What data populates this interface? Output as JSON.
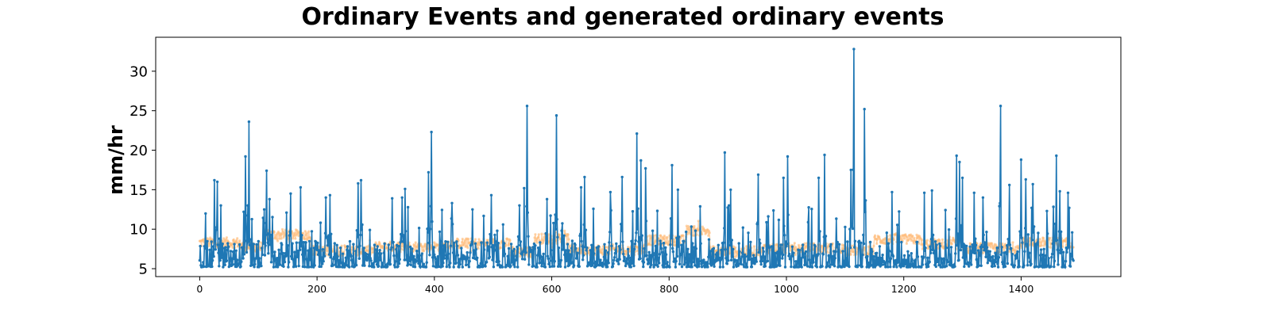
{
  "chart_data": {
    "type": "line",
    "title": "Ordinary Events and generated ordinary events",
    "xlabel": "",
    "ylabel": "mm/hr",
    "xlim": [
      -75,
      1570
    ],
    "ylim": [
      4.0,
      34.3
    ],
    "xticks": [
      0,
      200,
      400,
      600,
      800,
      1000,
      1200,
      1400
    ],
    "xtick_labels": [
      "0",
      "200",
      "400",
      "600",
      "800",
      "1000",
      "1200",
      "1400"
    ],
    "yticks": [
      5,
      10,
      15,
      20,
      25,
      30
    ],
    "ytick_labels": [
      "5",
      "10",
      "15",
      "20",
      "25",
      "30"
    ],
    "grid": false,
    "legend": "none",
    "series": [
      {
        "color": "#1f77b4",
        "marker": "dot",
        "n_points": 1490,
        "baseline_range": [
          5.2,
          8.5
        ],
        "peaks": [
          {
            "x": 25,
            "y": 16.2
          },
          {
            "x": 30,
            "y": 16.0
          },
          {
            "x": 36,
            "y": 13.0
          },
          {
            "x": 75,
            "y": 12.2
          },
          {
            "x": 78,
            "y": 19.2
          },
          {
            "x": 84,
            "y": 23.6
          },
          {
            "x": 110,
            "y": 12.5
          },
          {
            "x": 114,
            "y": 17.4
          },
          {
            "x": 119,
            "y": 13.8
          },
          {
            "x": 155,
            "y": 14.5
          },
          {
            "x": 172,
            "y": 15.3
          },
          {
            "x": 215,
            "y": 14.0
          },
          {
            "x": 222,
            "y": 14.3
          },
          {
            "x": 270,
            "y": 15.8
          },
          {
            "x": 275,
            "y": 16.2
          },
          {
            "x": 328,
            "y": 13.9
          },
          {
            "x": 345,
            "y": 14.0
          },
          {
            "x": 350,
            "y": 15.1
          },
          {
            "x": 390,
            "y": 17.2
          },
          {
            "x": 395,
            "y": 22.3
          },
          {
            "x": 430,
            "y": 13.3
          },
          {
            "x": 465,
            "y": 12.5
          },
          {
            "x": 497,
            "y": 14.3
          },
          {
            "x": 545,
            "y": 13.0
          },
          {
            "x": 553,
            "y": 15.2
          },
          {
            "x": 558,
            "y": 25.6
          },
          {
            "x": 592,
            "y": 13.8
          },
          {
            "x": 608,
            "y": 24.4
          },
          {
            "x": 650,
            "y": 15.3
          },
          {
            "x": 656,
            "y": 16.6
          },
          {
            "x": 700,
            "y": 14.7
          },
          {
            "x": 720,
            "y": 16.6
          },
          {
            "x": 745,
            "y": 22.1
          },
          {
            "x": 752,
            "y": 18.7
          },
          {
            "x": 760,
            "y": 17.7
          },
          {
            "x": 805,
            "y": 18.1
          },
          {
            "x": 815,
            "y": 15.0
          },
          {
            "x": 895,
            "y": 19.7
          },
          {
            "x": 905,
            "y": 15.0
          },
          {
            "x": 952,
            "y": 16.9
          },
          {
            "x": 995,
            "y": 16.5
          },
          {
            "x": 1002,
            "y": 19.2
          },
          {
            "x": 1055,
            "y": 16.5
          },
          {
            "x": 1065,
            "y": 19.4
          },
          {
            "x": 1110,
            "y": 17.5
          },
          {
            "x": 1115,
            "y": 32.8
          },
          {
            "x": 1133,
            "y": 25.2
          },
          {
            "x": 1180,
            "y": 14.7
          },
          {
            "x": 1235,
            "y": 14.6
          },
          {
            "x": 1248,
            "y": 14.9
          },
          {
            "x": 1290,
            "y": 19.3
          },
          {
            "x": 1295,
            "y": 18.5
          },
          {
            "x": 1300,
            "y": 16.5
          },
          {
            "x": 1320,
            "y": 14.6
          },
          {
            "x": 1335,
            "y": 14.0
          },
          {
            "x": 1365,
            "y": 25.6
          },
          {
            "x": 1380,
            "y": 15.6
          },
          {
            "x": 1400,
            "y": 18.8
          },
          {
            "x": 1408,
            "y": 16.3
          },
          {
            "x": 1420,
            "y": 15.7
          },
          {
            "x": 1460,
            "y": 19.3
          },
          {
            "x": 1466,
            "y": 14.8
          },
          {
            "x": 1480,
            "y": 14.6
          }
        ]
      },
      {
        "color": "#ffbb78",
        "opacity": 0.6,
        "marker": "dot",
        "n_points": 1490,
        "segment_levels": [
          {
            "x": [
              0,
              70
            ],
            "y": 8.3
          },
          {
            "x": [
              70,
              110
            ],
            "y": 7.8
          },
          {
            "x": [
              110,
              190
            ],
            "y": 9.3
          },
          {
            "x": [
              190,
              300
            ],
            "y": 7.3
          },
          {
            "x": [
              300,
              420
            ],
            "y": 7.8
          },
          {
            "x": [
              420,
              530
            ],
            "y": 8.2
          },
          {
            "x": [
              530,
              570
            ],
            "y": 7.1
          },
          {
            "x": [
              570,
              630
            ],
            "y": 8.8
          },
          {
            "x": [
              630,
              760
            ],
            "y": 7.4
          },
          {
            "x": [
              760,
              830
            ],
            "y": 8.6
          },
          {
            "x": [
              830,
              870
            ],
            "y": 9.8
          },
          {
            "x": [
              870,
              960
            ],
            "y": 7.2
          },
          {
            "x": [
              960,
              1100
            ],
            "y": 7.6
          },
          {
            "x": [
              1100,
              1150
            ],
            "y": 7.3
          },
          {
            "x": [
              1150,
              1230
            ],
            "y": 8.7
          },
          {
            "x": [
              1230,
              1300
            ],
            "y": 8.1
          },
          {
            "x": [
              1300,
              1400
            ],
            "y": 7.6
          },
          {
            "x": [
              1400,
              1490
            ],
            "y": 8.3
          }
        ]
      }
    ]
  }
}
